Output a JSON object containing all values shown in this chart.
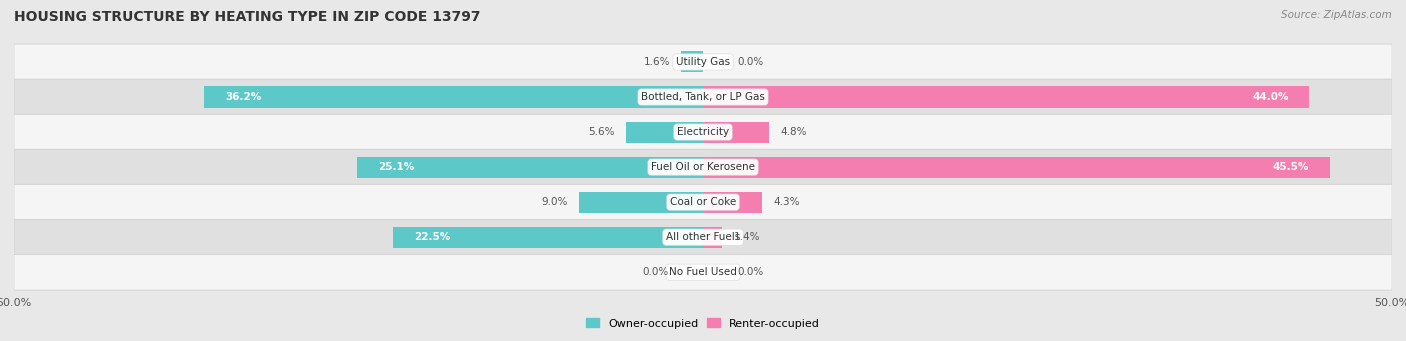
{
  "title": "HOUSING STRUCTURE BY HEATING TYPE IN ZIP CODE 13797",
  "source": "Source: ZipAtlas.com",
  "categories": [
    "Utility Gas",
    "Bottled, Tank, or LP Gas",
    "Electricity",
    "Fuel Oil or Kerosene",
    "Coal or Coke",
    "All other Fuels",
    "No Fuel Used"
  ],
  "owner_values": [
    1.6,
    36.2,
    5.6,
    25.1,
    9.0,
    22.5,
    0.0
  ],
  "renter_values": [
    0.0,
    44.0,
    4.8,
    45.5,
    4.3,
    1.4,
    0.0
  ],
  "owner_color": "#5CC8C8",
  "renter_color": "#F47EB0",
  "owner_label": "Owner-occupied",
  "renter_label": "Renter-occupied",
  "xlim": 50.0,
  "bar_height": 0.6,
  "fig_bg": "#e8e8e8",
  "row_bg_odd": "#f5f5f5",
  "row_bg_even": "#e0e0e0",
  "title_fontsize": 10,
  "source_fontsize": 7.5,
  "cat_fontsize": 7.5,
  "val_fontsize": 7.5
}
